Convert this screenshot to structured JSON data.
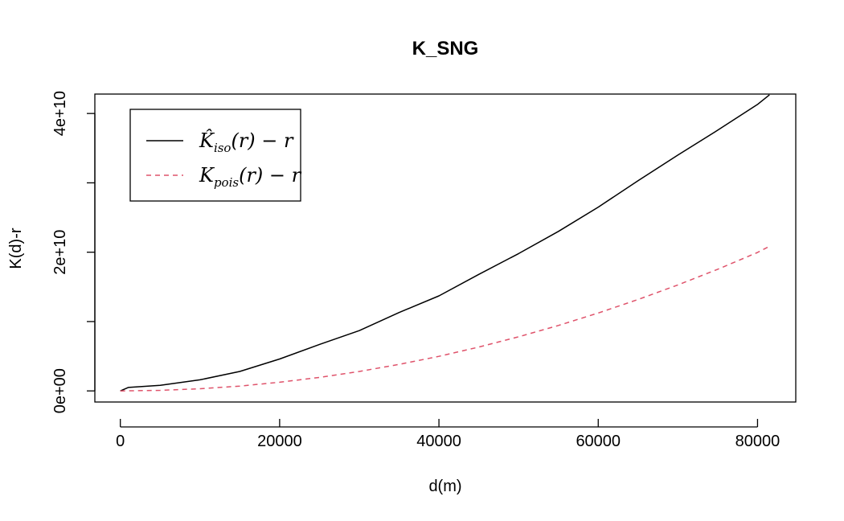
{
  "chart_data": {
    "type": "line",
    "title": "K_SNG",
    "xlabel": "d(m)",
    "ylabel": "K(d)-r",
    "xlim": [
      -3200,
      84800
    ],
    "ylim": [
      -1600000000,
      42800000000
    ],
    "x_ticks": [
      0,
      20000,
      40000,
      60000,
      80000
    ],
    "x_tick_labels": [
      "0",
      "20000",
      "40000",
      "60000",
      "80000"
    ],
    "y_ticks": [
      0,
      10000000000,
      20000000000,
      30000000000,
      40000000000
    ],
    "y_tick_labels": [
      "0e+00",
      "",
      "2e+10",
      "",
      "4e+10"
    ],
    "grid": false,
    "legend_position": "top-left",
    "series": [
      {
        "label_main": "K̂",
        "label_sub": "iso",
        "label_tail": "(r) − r",
        "color": "#000000",
        "dash": "solid",
        "x": [
          0,
          1000,
          5000,
          10000,
          15000,
          20000,
          25000,
          30000,
          35000,
          40000,
          45000,
          50000,
          55000,
          60000,
          65000,
          70000,
          75000,
          80000,
          81500
        ],
        "y": [
          0,
          500000000,
          800000000,
          1600000000,
          2800000000,
          4600000000,
          6700000000,
          8700000000,
          11300000000,
          13700000000,
          16800000000,
          19800000000,
          23000000000,
          26500000000,
          30300000000,
          34000000000,
          37600000000,
          41300000000,
          42700000000
        ]
      },
      {
        "label_main": "K",
        "label_sub": "pois",
        "label_tail": "(r) − r",
        "color": "#DF536B",
        "dash": "dashed",
        "x": [
          0,
          5000,
          10000,
          15000,
          20000,
          25000,
          30000,
          35000,
          40000,
          45000,
          50000,
          55000,
          60000,
          65000,
          70000,
          75000,
          80000,
          81500
        ],
        "y": [
          0,
          80000000,
          310000000,
          700000000,
          1250000000,
          1950000000,
          2810000000,
          3820000000,
          4990000000,
          6320000000,
          7800000000,
          9440000000,
          11230000000,
          13180000000,
          15280000000,
          17540000000,
          19960000000,
          20850000000
        ]
      }
    ]
  }
}
